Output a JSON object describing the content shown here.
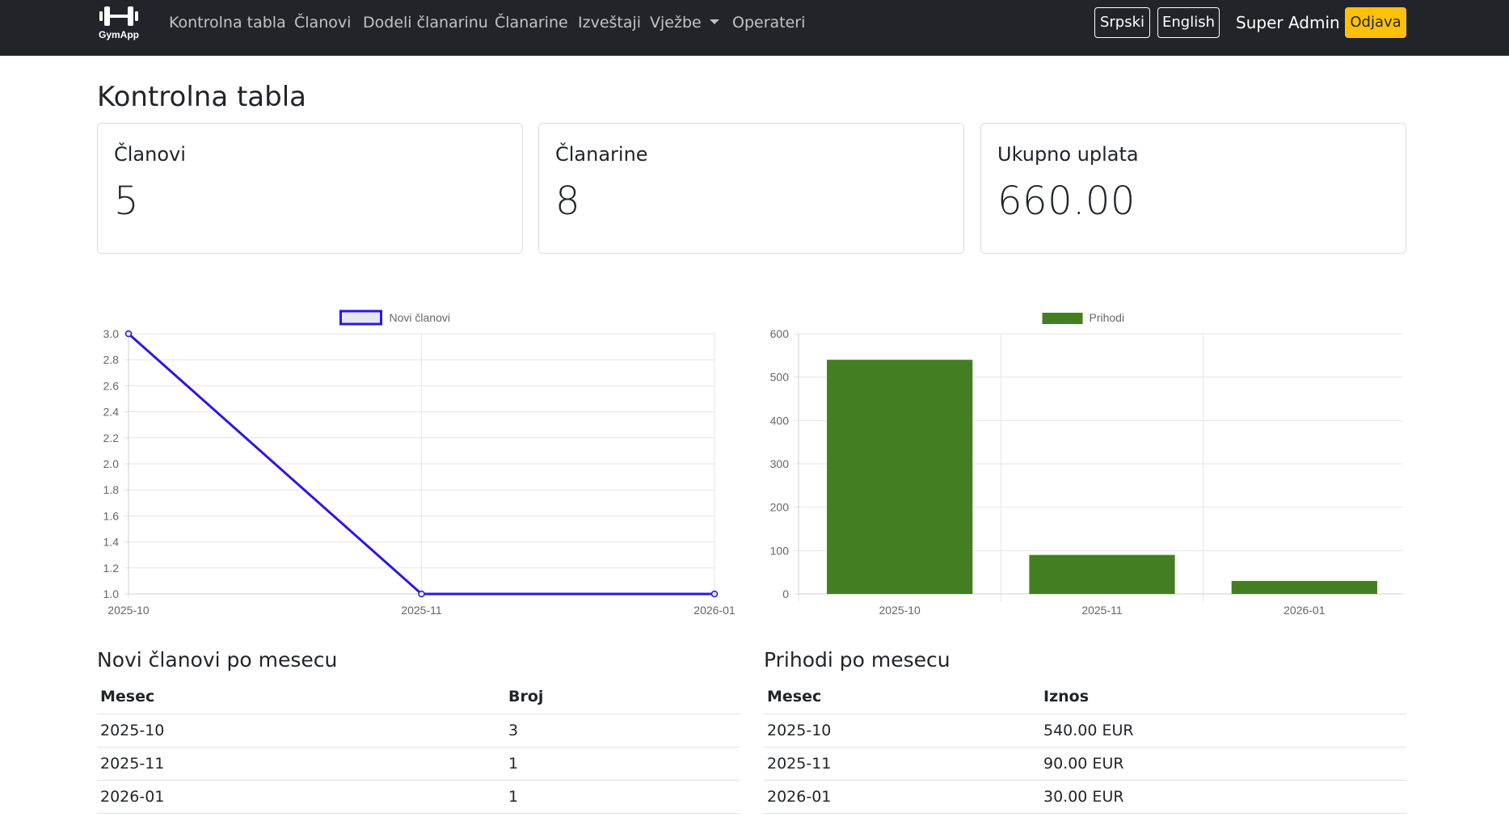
{
  "brand": {
    "name": "GymApp",
    "logo_icon": "dumbbell-icon"
  },
  "nav": {
    "items": [
      {
        "label": "Kontrolna tabla"
      },
      {
        "label": "Članovi"
      },
      {
        "label": "Dodeli članarinu"
      },
      {
        "label": "Članarine"
      },
      {
        "label": "Izveštaji"
      },
      {
        "label": "Vježbe"
      },
      {
        "label": "Operateri"
      }
    ]
  },
  "header_right": {
    "lang_sr": "Srpski",
    "lang_en": "English",
    "user": "Super Admin",
    "logout": "Odjava"
  },
  "page": {
    "title": "Kontrolna tabla"
  },
  "stats": [
    {
      "label": "Članovi",
      "value": "5"
    },
    {
      "label": "Članarine",
      "value": "8"
    },
    {
      "label": "Ukupno uplata",
      "value": "660.00"
    }
  ],
  "colors": {
    "navbar": "#212529",
    "line_series": "#2b16e6",
    "bar_series": "#437f22",
    "logout": "#ffc107"
  },
  "chart_data": [
    {
      "type": "line",
      "x": [
        "2025-10",
        "2025-11",
        "2026-01"
      ],
      "series": [
        {
          "name": "Novi članovi",
          "values": [
            3,
            1,
            1
          ]
        }
      ],
      "ylim": [
        1.0,
        3.0
      ],
      "yticks": [
        "3.0",
        "2.8",
        "2.6",
        "2.4",
        "2.2",
        "2.0",
        "1.8",
        "1.6",
        "1.4",
        "1.2",
        "1.0"
      ],
      "grid": true,
      "legend": "top-center"
    },
    {
      "type": "bar",
      "categories": [
        "2025-10",
        "2025-11",
        "2026-01"
      ],
      "series": [
        {
          "name": "Prihodi",
          "values": [
            540,
            90,
            30
          ]
        }
      ],
      "ylim": [
        0,
        600
      ],
      "yticks": [
        "600",
        "500",
        "400",
        "300",
        "200",
        "100",
        "0"
      ],
      "grid": true,
      "legend": "top-center"
    }
  ],
  "tables": {
    "members": {
      "title": "Novi članovi po mesecu",
      "headers": [
        "Mesec",
        "Broj"
      ],
      "rows": [
        [
          "2025-10",
          "3"
        ],
        [
          "2025-11",
          "1"
        ],
        [
          "2026-01",
          "1"
        ]
      ]
    },
    "revenue": {
      "title": "Prihodi po mesecu",
      "headers": [
        "Mesec",
        "Iznos"
      ],
      "rows": [
        [
          "2025-10",
          "540.00 EUR"
        ],
        [
          "2025-11",
          "90.00 EUR"
        ],
        [
          "2026-01",
          "30.00 EUR"
        ]
      ]
    }
  }
}
